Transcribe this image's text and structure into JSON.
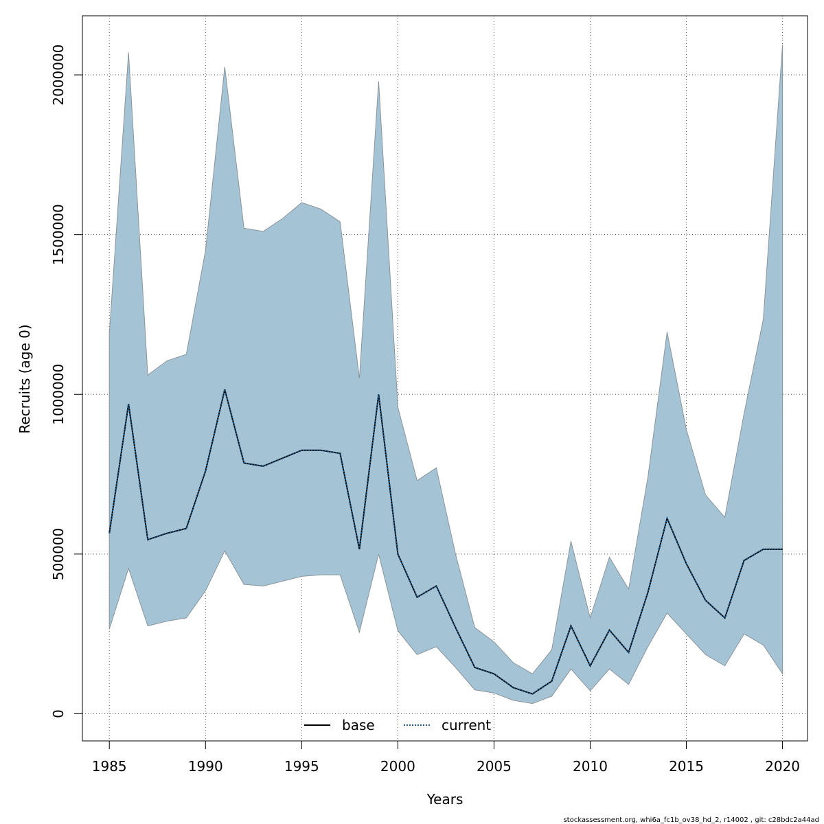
{
  "chart_data": {
    "type": "area",
    "xlabel": "Years",
    "ylabel": "Recruits (age 0)",
    "xlim": [
      1983.6,
      2021.3
    ],
    "ylim": [
      -85000,
      2185000
    ],
    "x_ticks": [
      1985,
      1990,
      1995,
      2000,
      2005,
      2010,
      2015,
      2020
    ],
    "y_ticks": [
      0,
      500000,
      1000000,
      1500000,
      2000000
    ],
    "grid": true,
    "legend_position": "bottom-center",
    "x": [
      1985,
      1986,
      1987,
      1988,
      1989,
      1990,
      1991,
      1992,
      1993,
      1994,
      1995,
      1996,
      1997,
      1998,
      1999,
      2000,
      2001,
      2002,
      2003,
      2004,
      2005,
      2006,
      2007,
      2008,
      2009,
      2010,
      2011,
      2012,
      2013,
      2014,
      2015,
      2016,
      2017,
      2018,
      2019,
      2020
    ],
    "band": {
      "upper": [
        1190000,
        2070000,
        1060000,
        1105000,
        1125000,
        1450000,
        2025000,
        1520000,
        1510000,
        1550000,
        1600000,
        1580000,
        1540000,
        1050000,
        1980000,
        960000,
        730000,
        770000,
        500000,
        270000,
        225000,
        160000,
        125000,
        200000,
        540000,
        300000,
        490000,
        390000,
        740000,
        1195000,
        890000,
        685000,
        615000,
        940000,
        1235000,
        2095000
      ],
      "lower": [
        265000,
        455000,
        275000,
        290000,
        300000,
        385000,
        510000,
        405000,
        400000,
        415000,
        430000,
        435000,
        435000,
        255000,
        500000,
        260000,
        185000,
        210000,
        145000,
        75000,
        65000,
        42000,
        32000,
        55000,
        140000,
        72000,
        140000,
        92000,
        210000,
        315000,
        250000,
        185000,
        150000,
        250000,
        215000,
        125000
      ],
      "fill_color": "#a4c3d5",
      "edge_color": "#8a959b"
    },
    "series": [
      {
        "name": "base",
        "color": "#000000",
        "style": "solid",
        "values": [
          565000,
          970000,
          545000,
          565000,
          580000,
          760000,
          1015000,
          785000,
          775000,
          800000,
          825000,
          825000,
          815000,
          515000,
          1000000,
          500000,
          365000,
          400000,
          270000,
          145000,
          125000,
          82000,
          62000,
          102000,
          275000,
          150000,
          262000,
          192000,
          380000,
          612000,
          470000,
          355000,
          300000,
          480000,
          515000,
          515000
        ]
      },
      {
        "name": "current",
        "color": "#1a5a8c",
        "style": "dotted",
        "values": [
          565000,
          970000,
          545000,
          565000,
          580000,
          760000,
          1015000,
          785000,
          775000,
          800000,
          825000,
          825000,
          815000,
          515000,
          1000000,
          500000,
          365000,
          400000,
          270000,
          145000,
          125000,
          82000,
          62000,
          102000,
          275000,
          150000,
          262000,
          192000,
          380000,
          612000,
          470000,
          355000,
          300000,
          480000,
          515000,
          515000
        ]
      }
    ]
  },
  "footer_text": "stockassessment.org, whi6a_fc1b_ov38_hd_2, r14002 , git: c28bdc2a44ad"
}
